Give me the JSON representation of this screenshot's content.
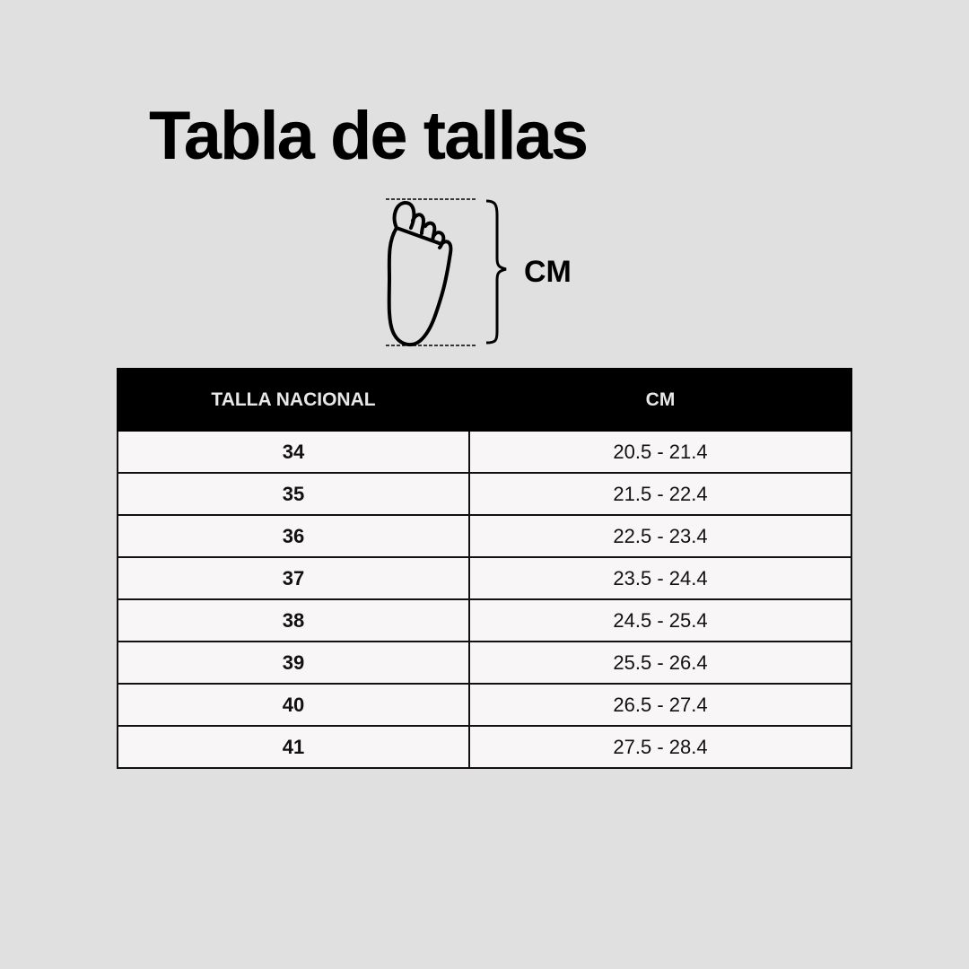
{
  "title": "Tabla de tallas",
  "diagram": {
    "icon": "foot-outline-icon",
    "measure_label": "CM"
  },
  "table": {
    "headers": [
      "TALLA NACIONAL",
      "CM"
    ],
    "rows": [
      [
        "34",
        "20.5 - 21.4"
      ],
      [
        "35",
        "21.5 - 22.4"
      ],
      [
        "36",
        "22.5 - 23.4"
      ],
      [
        "37",
        "23.5 - 24.4"
      ],
      [
        "38",
        "24.5 - 25.4"
      ],
      [
        "39",
        "25.5 - 26.4"
      ],
      [
        "40",
        "26.5 - 27.4"
      ],
      [
        "41",
        "27.5 - 28.4"
      ]
    ]
  }
}
